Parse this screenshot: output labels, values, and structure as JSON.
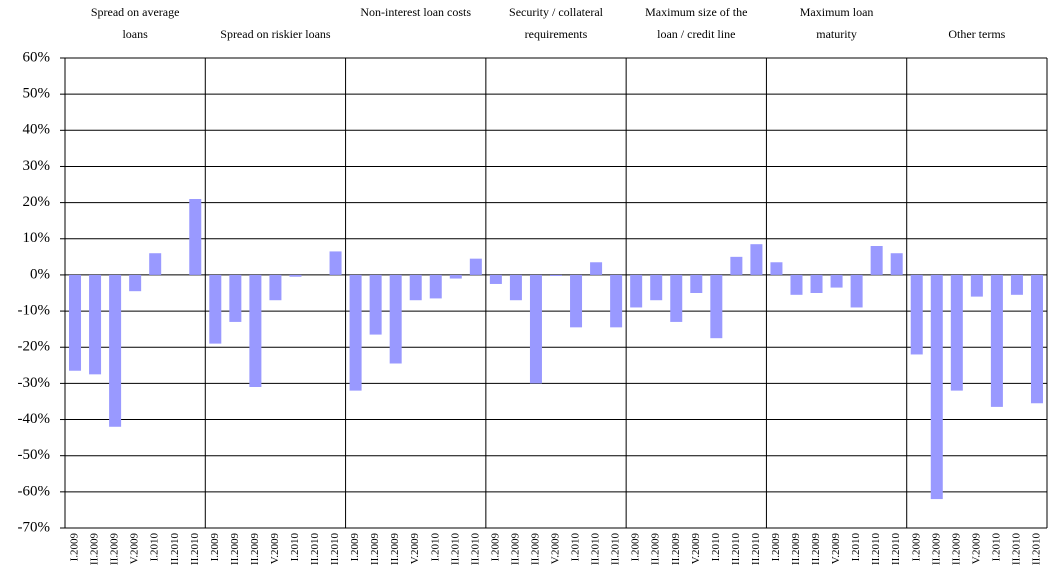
{
  "chart_data": {
    "type": "bar",
    "color": "#9999ff",
    "categories": [
      "I.2009",
      "II.2009",
      "II.2009",
      "V.2009",
      "I.2010",
      "II.2010",
      "II.2010"
    ],
    "ylim": [
      -70,
      60
    ],
    "yticks": [
      {
        "value": -70,
        "label": "-70%"
      },
      {
        "value": -60,
        "label": "-60%"
      },
      {
        "value": -50,
        "label": "-50%"
      },
      {
        "value": -40,
        "label": "-40%"
      },
      {
        "value": -30,
        "label": "-30%"
      },
      {
        "value": -20,
        "label": "-20%"
      },
      {
        "value": -10,
        "label": "-10%"
      },
      {
        "value": 0,
        "label": "0%"
      },
      {
        "value": 10,
        "label": "10%"
      },
      {
        "value": 20,
        "label": "20%"
      },
      {
        "value": 30,
        "label": "30%"
      },
      {
        "value": 40,
        "label": "40%"
      },
      {
        "value": 50,
        "label": "50%"
      },
      {
        "value": 60,
        "label": "60%"
      }
    ],
    "grid": true,
    "panels": [
      {
        "title": [
          "Spread on average",
          "loans"
        ],
        "values": [
          -26.5,
          -27.5,
          -42,
          -4.5,
          6,
          0,
          21
        ]
      },
      {
        "title": [
          "Spread on riskier loans"
        ],
        "values": [
          -19,
          -13,
          -31,
          -7,
          -0.5,
          0,
          6.5
        ]
      },
      {
        "title": [
          "Non-interest loan costs"
        ],
        "values": [
          -32,
          -16.5,
          -24.5,
          -7,
          -6.5,
          -1,
          4.5
        ]
      },
      {
        "title": [
          "Security / collateral",
          "requirements"
        ],
        "values": [
          -2.5,
          -7,
          -30,
          -0.3,
          -14.5,
          3.5,
          -14.5
        ]
      },
      {
        "title": [
          "Maximum size of the",
          "loan / credit line"
        ],
        "values": [
          -9,
          -7,
          -13,
          -5,
          -17.5,
          5,
          8.5
        ]
      },
      {
        "title": [
          "Maximum loan",
          "maturity"
        ],
        "values": [
          3.5,
          -5.5,
          -5,
          -3.5,
          -9,
          8,
          6
        ]
      },
      {
        "title": [
          "Other terms"
        ],
        "values": [
          -22,
          -62,
          -32,
          -6,
          -36.5,
          -5.5,
          -35.5
        ]
      }
    ]
  }
}
